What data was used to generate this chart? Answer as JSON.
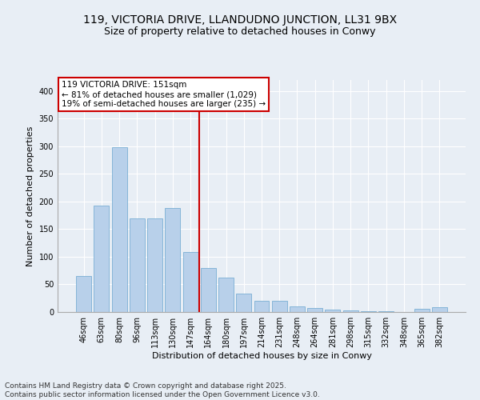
{
  "title_line1": "119, VICTORIA DRIVE, LLANDUDNO JUNCTION, LL31 9BX",
  "title_line2": "Size of property relative to detached houses in Conwy",
  "xlabel": "Distribution of detached houses by size in Conwy",
  "ylabel": "Number of detached properties",
  "footer_line1": "Contains HM Land Registry data © Crown copyright and database right 2025.",
  "footer_line2": "Contains public sector information licensed under the Open Government Licence v3.0.",
  "annotation_title": "119 VICTORIA DRIVE: 151sqm",
  "annotation_line2": "← 81% of detached houses are smaller (1,029)",
  "annotation_line3": "19% of semi-detached houses are larger (235) →",
  "bar_labels": [
    "46sqm",
    "63sqm",
    "80sqm",
    "96sqm",
    "113sqm",
    "130sqm",
    "147sqm",
    "164sqm",
    "180sqm",
    "197sqm",
    "214sqm",
    "231sqm",
    "248sqm",
    "264sqm",
    "281sqm",
    "298sqm",
    "315sqm",
    "332sqm",
    "348sqm",
    "365sqm",
    "382sqm"
  ],
  "bar_values": [
    65,
    192,
    298,
    170,
    170,
    188,
    108,
    80,
    62,
    33,
    21,
    21,
    10,
    7,
    5,
    3,
    2,
    1,
    0,
    6,
    8
  ],
  "bar_color": "#b8d0ea",
  "bar_edge_color": "#7aafd4",
  "vline_color": "#cc0000",
  "annotation_box_color": "#cc0000",
  "annotation_fill_color": "#ffffff",
  "bg_color": "#e8eef5",
  "plot_bg_color": "#e8eef5",
  "ylim": [
    0,
    420
  ],
  "yticks": [
    0,
    50,
    100,
    150,
    200,
    250,
    300,
    350,
    400
  ],
  "title_fontsize": 10,
  "subtitle_fontsize": 9,
  "axis_label_fontsize": 8,
  "tick_fontsize": 7,
  "footer_fontsize": 6.5,
  "annotation_fontsize": 7.5
}
